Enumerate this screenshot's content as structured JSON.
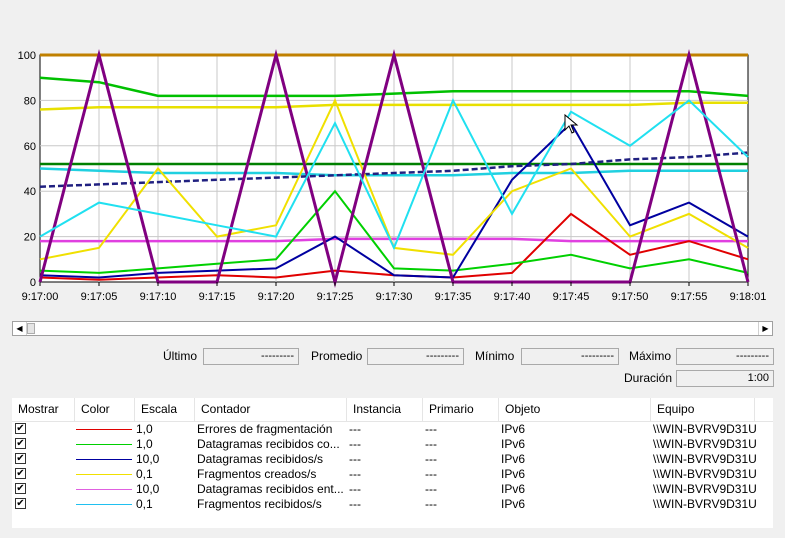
{
  "chart_data": {
    "type": "line",
    "y_ticks": [
      "100",
      "80",
      "60",
      "40",
      "20",
      "0"
    ],
    "ylim": [
      0,
      100
    ],
    "x_ticks": [
      "9:17:00",
      "9:17:05",
      "9:17:10",
      "9:17:15",
      "9:17:20",
      "9:17:25",
      "9:17:30",
      "9:17:35",
      "9:17:40",
      "9:17:45",
      "9:17:50",
      "9:17:55",
      "9:18:01"
    ],
    "grid": true,
    "background_lines": [
      {
        "color": "#c08000",
        "values": [
          100
        ]
      },
      {
        "color": "#00c000",
        "values": [
          90,
          88,
          82,
          82,
          82,
          82,
          83,
          84,
          84,
          84,
          84,
          84,
          82
        ]
      },
      {
        "color": "#e8e000",
        "values": [
          76,
          77,
          77,
          77,
          77,
          78,
          78,
          78,
          78,
          78,
          78,
          79,
          79
        ]
      },
      {
        "color": "#008000",
        "values": [
          52,
          52,
          52,
          52,
          52,
          52,
          52,
          52,
          52,
          52,
          52,
          52,
          52
        ]
      },
      {
        "color": "#20d0e0",
        "values": [
          50,
          49,
          48,
          48,
          48,
          47,
          47,
          47,
          48,
          48,
          49,
          49,
          49
        ]
      },
      {
        "color": "#202080",
        "values": [
          42,
          43,
          44,
          45,
          46,
          47,
          48,
          49,
          51,
          52,
          54,
          55,
          57
        ]
      },
      {
        "color": "#e040e0",
        "values": [
          18,
          18,
          18,
          18,
          18,
          19,
          19,
          19,
          19,
          18,
          18,
          18,
          18
        ]
      }
    ],
    "lines": [
      {
        "color": "#e00000",
        "values": [
          2,
          1,
          2,
          3,
          2,
          5,
          3,
          2,
          4,
          30,
          12,
          18,
          10
        ]
      },
      {
        "color": "#00d000",
        "values": [
          5,
          4,
          6,
          8,
          10,
          40,
          6,
          5,
          8,
          12,
          6,
          10,
          4
        ]
      },
      {
        "color": "#0000a0",
        "values": [
          3,
          2,
          4,
          5,
          6,
          20,
          3,
          2,
          45,
          70,
          25,
          35,
          20
        ]
      },
      {
        "color": "#f0e000",
        "values": [
          10,
          15,
          50,
          20,
          25,
          80,
          15,
          12,
          40,
          50,
          20,
          30,
          15
        ]
      },
      {
        "color": "#800080",
        "values": [
          0,
          100,
          0,
          0,
          100,
          0,
          100,
          0,
          0,
          0,
          0,
          100,
          0
        ]
      },
      {
        "color": "#20e0f0",
        "values": [
          20,
          35,
          30,
          25,
          20,
          70,
          15,
          80,
          30,
          75,
          60,
          80,
          55
        ]
      }
    ]
  },
  "stats": {
    "last_label": "Último",
    "last_value": "---------",
    "avg_label": "Promedio",
    "avg_value": "---------",
    "min_label": "Mínimo",
    "min_value": "---------",
    "max_label": "Máximo",
    "max_value": "---------",
    "duration_label": "Duración",
    "duration_value": "1:00"
  },
  "table": {
    "headers": {
      "show": "Mostrar",
      "color": "Color",
      "scale": "Escala",
      "counter": "Contador",
      "instance": "Instancia",
      "parent": "Primario",
      "object": "Objeto",
      "computer": "Equipo"
    },
    "rows": [
      {
        "check": "✔",
        "color": "#e00000",
        "scale": "1,0",
        "counter": "Errores de fragmentación",
        "instance": "---",
        "parent": "---",
        "object": "IPv6",
        "computer": "\\\\WIN-BVRV9D31U"
      },
      {
        "check": "✔",
        "color": "#00d000",
        "scale": "1,0",
        "counter": "Datagramas recibidos co...",
        "instance": "---",
        "parent": "---",
        "object": "IPv6",
        "computer": "\\\\WIN-BVRV9D31U"
      },
      {
        "check": "✔",
        "color": "#0000a0",
        "scale": "10,0",
        "counter": "Datagramas recibidos/s",
        "instance": "---",
        "parent": "---",
        "object": "IPv6",
        "computer": "\\\\WIN-BVRV9D31U"
      },
      {
        "check": "✔",
        "color": "#f0e000",
        "scale": "0,1",
        "counter": "Fragmentos creados/s",
        "instance": "---",
        "parent": "---",
        "object": "IPv6",
        "computer": "\\\\WIN-BVRV9D31U"
      },
      {
        "check": "✔",
        "color": "#e060e0",
        "scale": "10,0",
        "counter": "Datagramas recibidos ent...",
        "instance": "---",
        "parent": "---",
        "object": "IPv6",
        "computer": "\\\\WIN-BVRV9D31U"
      },
      {
        "check": "✔",
        "color": "#20c0f0",
        "scale": "0,1",
        "counter": "Fragmentos recibidos/s",
        "instance": "---",
        "parent": "---",
        "object": "IPv6",
        "computer": "\\\\WIN-BVRV9D31U"
      }
    ]
  }
}
